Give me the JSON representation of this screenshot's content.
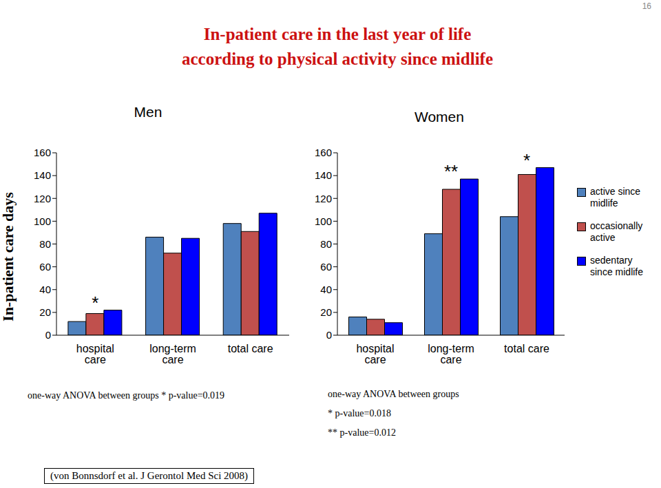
{
  "title": "In-patient care in the last year of life\naccording to physical activity since midlife",
  "page_number": "16",
  "source": "(von Bonnsdorf et al. J Gerontol Med Sci 2008)",
  "chart_data": [
    {
      "type": "bar",
      "title": "Men",
      "y_label": "In-patient care days",
      "categories": [
        "hospital care",
        "long-term care",
        "total care"
      ],
      "series": [
        {
          "name": "active since midlife",
          "color": "#4f81bd",
          "values": [
            12,
            86,
            98
          ]
        },
        {
          "name": "occasionally active",
          "color": "#c0504d",
          "values": [
            19,
            72,
            91
          ]
        },
        {
          "name": "sedentary since midlife",
          "color": "#0000ff",
          "values": [
            22,
            85,
            107
          ]
        }
      ],
      "ylim": [
        0,
        160
      ],
      "yticks": [
        0,
        20,
        40,
        60,
        80,
        100,
        120,
        140,
        160
      ],
      "grid": false,
      "annotations": [
        {
          "category": "hospital care",
          "text": "*"
        }
      ],
      "notes": [
        "one-way ANOVA between groups * p-value=0.019"
      ]
    },
    {
      "type": "bar",
      "title": "Women",
      "categories": [
        "hospital care",
        "long-term care",
        "total care"
      ],
      "series": [
        {
          "name": "active since midlife",
          "color": "#4f81bd",
          "values": [
            16,
            89,
            104
          ]
        },
        {
          "name": "occasionally active",
          "color": "#c0504d",
          "values": [
            14,
            128,
            141
          ]
        },
        {
          "name": "sedentary since midlife",
          "color": "#0000ff",
          "values": [
            11,
            137,
            147
          ]
        }
      ],
      "ylim": [
        0,
        160
      ],
      "yticks": [
        0,
        20,
        40,
        60,
        80,
        100,
        120,
        140,
        160
      ],
      "grid": false,
      "legend": "right",
      "annotations": [
        {
          "category": "long-term care",
          "text": "**"
        },
        {
          "category": "total care",
          "text": "*"
        }
      ],
      "notes": [
        "one-way ANOVA between groups",
        "* p-value=0.018",
        "** p-value=0.012"
      ]
    }
  ]
}
